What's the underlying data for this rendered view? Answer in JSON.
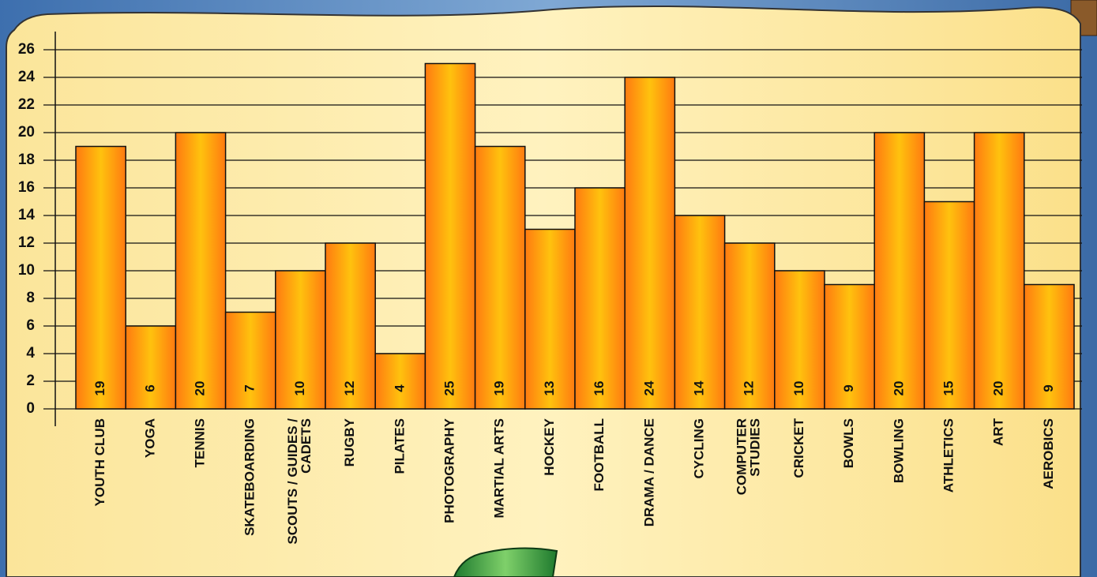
{
  "chart_data": {
    "type": "bar",
    "categories": [
      "YOUTH CLUB",
      "YOGA",
      "TENNIS",
      "SKATEBOARDING",
      "SCOUTS / GUIDES /\nCADETS",
      "RUGBY",
      "PILATES",
      "PHOTOGRAPHY",
      "MARTIAL ARTS",
      "HOCKEY",
      "FOOTBALL",
      "DRAMA / DANCE",
      "CYCLING",
      "COMPUTER\nSTUDIES",
      "CRICKET",
      "BOWLS",
      "BOWLING",
      "ATHLETICS",
      "ART",
      "AEROBICS"
    ],
    "values": [
      19,
      6,
      20,
      7,
      10,
      12,
      4,
      25,
      19,
      13,
      16,
      24,
      14,
      12,
      10,
      9,
      20,
      15,
      20,
      9
    ],
    "color": "#ff8c1a",
    "ylim": [
      0,
      26
    ],
    "yticks": [
      0,
      2,
      4,
      6,
      8,
      10,
      12,
      14,
      16,
      18,
      20,
      22,
      24,
      26
    ],
    "grid": true
  }
}
